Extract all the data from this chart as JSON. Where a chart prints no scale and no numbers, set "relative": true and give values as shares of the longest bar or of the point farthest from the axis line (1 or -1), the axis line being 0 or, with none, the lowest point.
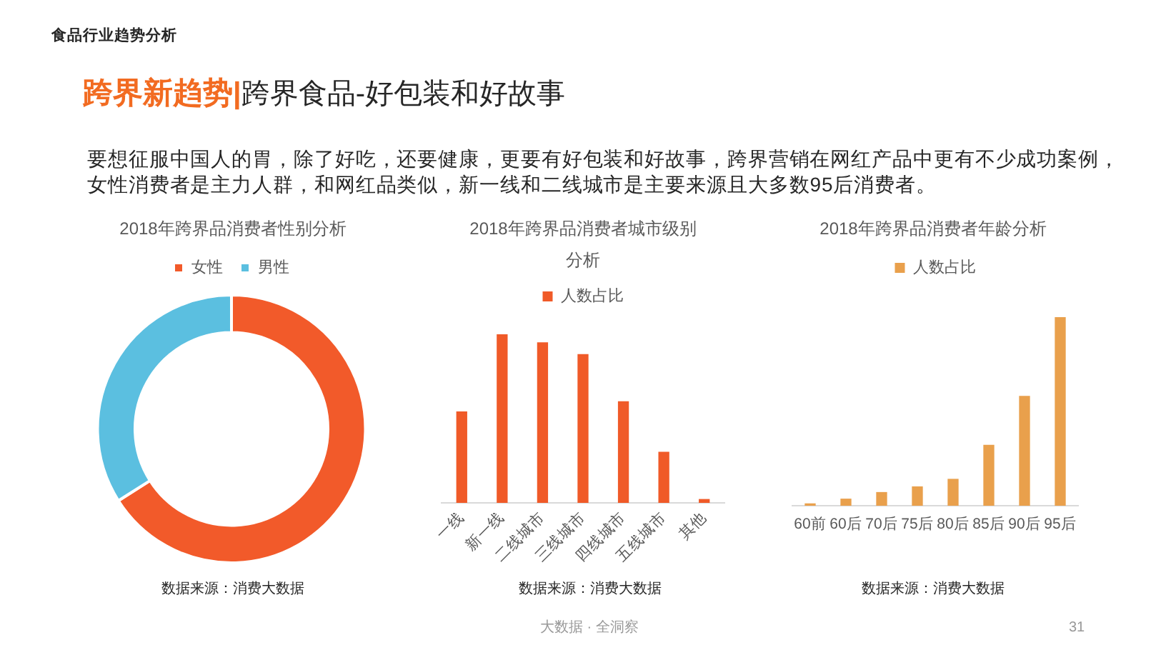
{
  "chart_data": [
    {
      "type": "other",
      "title": "跨界新趋势|",
      "subtitle": "跨界食品-好包装和好故事",
      "annotations": [
        "食品行业趋势分析",
        "要想征服中国人的胃，除了好吃，还要健康，更要有好包装和好故事，跨界营销在网红产品中更有不少成功案例，",
        "女性消费者是主力人群，和网红品类似，新一线和二线城市是主要来源且大多数95后消费者。",
        "大数据 · 全洞察",
        "31"
      ]
    },
    {
      "type": "donut",
      "title": "2018年跨界品消费者性别分析",
      "categories": [
        "女性",
        "男性"
      ],
      "values": [
        66,
        34
      ],
      "colors": [
        "#f25a2a",
        "#5bbfe0"
      ],
      "legend": "top",
      "annotations": [
        "数据来源：消费大数据"
      ]
    },
    {
      "type": "bar",
      "title": "2018年跨界品消费者城市级别分析",
      "categories": [
        "一线",
        "新一线",
        "二线城市",
        "三线城市",
        "四线城市",
        "五线城市",
        "其他"
      ],
      "series": [
        {
          "name": "人数占比",
          "color": "#f05a28",
          "values": [
            0.54,
            1,
            0.95,
            0.88,
            0.6,
            0.3,
            0.02
          ]
        }
      ],
      "relative": true,
      "legend": "top",
      "annotations": [
        "数据来源：消费大数据"
      ]
    },
    {
      "type": "bar",
      "title": "2018年跨界品消费者年龄分析",
      "categories": [
        "60前",
        "60后",
        "70后",
        "75后",
        "80后",
        "85后",
        "90后",
        "95后"
      ],
      "series": [
        {
          "name": "人数占比",
          "color": "#e9a04c",
          "values": [
            0.01,
            0.035,
            0.07,
            0.1,
            0.14,
            0.32,
            0.58,
            1
          ]
        }
      ],
      "relative": true,
      "legend": "top",
      "annotations": [
        "数据来源：消费大数据"
      ]
    }
  ]
}
